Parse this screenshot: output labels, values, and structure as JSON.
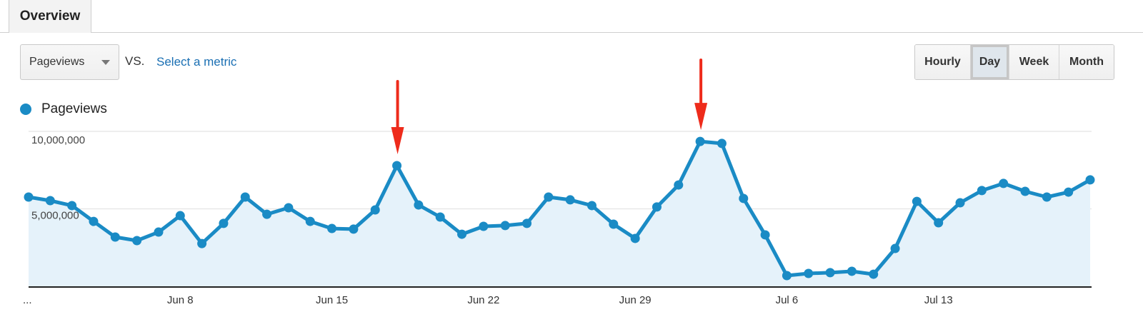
{
  "tabs": [
    {
      "label": "Overview",
      "active": true
    }
  ],
  "controls": {
    "metric_select": {
      "value": "Pageviews"
    },
    "vs_label": "VS.",
    "compare_link": "Select a metric",
    "granularity": [
      {
        "label": "Hourly",
        "active": false
      },
      {
        "label": "Day",
        "active": true
      },
      {
        "label": "Week",
        "active": false
      },
      {
        "label": "Month",
        "active": false
      }
    ]
  },
  "legend": {
    "label": "Pageviews",
    "color": "#1a8bc5"
  },
  "colors": {
    "line": "#1a8bc5",
    "fill": "#e5f2fa",
    "annotation": "#ee2b1b"
  },
  "chart_data": {
    "type": "area",
    "title": "",
    "xlabel": "",
    "ylabel": "",
    "legend": [
      "Pageviews"
    ],
    "legend_position": "top-left",
    "grid": true,
    "ylim": [
      0,
      10000000
    ],
    "y_ticks": [
      "5,000,000",
      "10,000,000"
    ],
    "x_ticks": [
      {
        "label": "...",
        "index": 0
      },
      {
        "label": "Jun 8",
        "index": 7
      },
      {
        "label": "Jun 15",
        "index": 14
      },
      {
        "label": "Jun 22",
        "index": 21
      },
      {
        "label": "Jun 29",
        "index": 28
      },
      {
        "label": "Jul 6",
        "index": 35
      },
      {
        "label": "Jul 13",
        "index": 42
      }
    ],
    "series": [
      {
        "name": "Pageviews",
        "values": [
          5760000,
          5530000,
          5210000,
          4190000,
          3180000,
          2950000,
          3500000,
          4560000,
          2760000,
          4060000,
          5760000,
          4650000,
          5070000,
          4190000,
          3730000,
          3690000,
          4930000,
          7790000,
          5250000,
          4470000,
          3360000,
          3870000,
          3920000,
          4060000,
          5760000,
          5580000,
          5210000,
          4010000,
          3090000,
          5120000,
          6540000,
          9350000,
          9220000,
          5670000,
          3320000,
          690000,
          830000,
          880000,
          970000,
          780000,
          2440000,
          5480000,
          4100000,
          5390000,
          6180000,
          6640000,
          6130000,
          5760000,
          6080000,
          6870000
        ]
      }
    ],
    "annotations": [
      {
        "type": "arrow",
        "points_to_index": 17,
        "color": "#ee2b1b"
      },
      {
        "type": "arrow",
        "points_to_index": 31,
        "color": "#ee2b1b"
      }
    ]
  }
}
